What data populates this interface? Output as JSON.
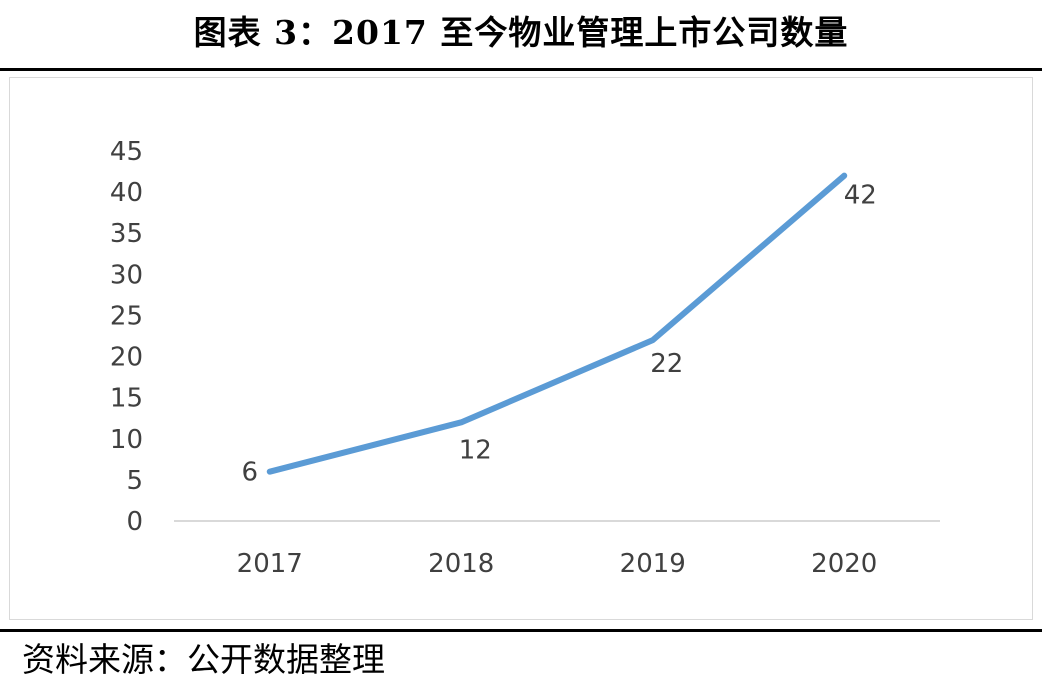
{
  "title": "图表 3：2017 至今物业管理上市公司数量",
  "source": "资料来源：公开数据整理",
  "chart_data": {
    "type": "line",
    "title": "图表 3：2017 至今物业管理上市公司数量",
    "categories": [
      "2017",
      "2018",
      "2019",
      "2020"
    ],
    "series": [
      {
        "name": "",
        "values": [
          6,
          12,
          22,
          42
        ]
      }
    ],
    "data_labels": [
      "6",
      "12",
      "22",
      "42"
    ],
    "ylim": [
      0,
      45
    ],
    "yticks": [
      0,
      5,
      10,
      15,
      20,
      25,
      30,
      35,
      40,
      45
    ],
    "grid": false,
    "legend": "none",
    "line_color": "#5b9bd5"
  }
}
